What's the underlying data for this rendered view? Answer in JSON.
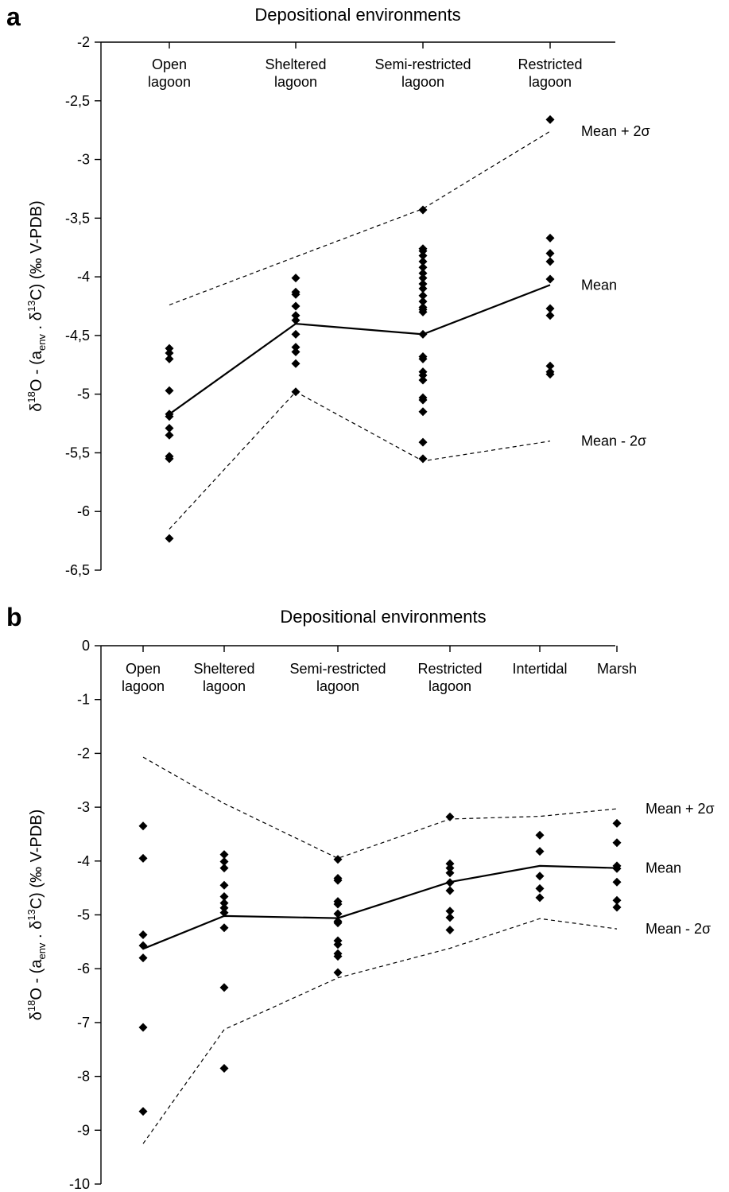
{
  "chart_data": [
    {
      "type": "scatter",
      "panel_label": "a",
      "title": "Depositional environments",
      "ylabel": {
        "pre": "δ",
        "sup1": "18",
        "mid": "O - (a",
        "sub": "env",
        "mid2": " . δ",
        "sup2": "13",
        "post": "C) (‰ V-PDB)"
      },
      "ylim": [
        -6.5,
        -2
      ],
      "yticks": [
        -2,
        -2.5,
        -3,
        -3.5,
        -4,
        -4.5,
        -5,
        -5.5,
        -6,
        -6.5
      ],
      "ytick_labels": [
        "-2",
        "-2,5",
        "-3",
        "-3,5",
        "-4",
        "-4,5",
        "-5",
        "-5,5",
        "-6",
        "-6,5"
      ],
      "categories": [
        [
          "Open",
          "lagoon"
        ],
        [
          "Sheltered",
          "lagoon"
        ],
        [
          "Semi-restricted",
          "lagoon"
        ],
        [
          "Restricted",
          "lagoon"
        ]
      ],
      "points": [
        [
          -4.61,
          -4.65,
          -4.7,
          -4.97,
          -5.17,
          -5.19,
          -5.29,
          -5.35,
          -5.53,
          -5.55,
          -6.23
        ],
        [
          -4.01,
          -4.13,
          -4.15,
          -4.25,
          -4.33,
          -4.37,
          -4.49,
          -4.6,
          -4.64,
          -4.74,
          -4.98
        ],
        [
          -3.43,
          -3.76,
          -3.78,
          -3.82,
          -3.87,
          -3.92,
          -3.97,
          -4.01,
          -4.06,
          -4.1,
          -4.16,
          -4.21,
          -4.26,
          -4.28,
          -4.3,
          -4.49,
          -4.68,
          -4.7,
          -4.81,
          -4.84,
          -4.88,
          -5.03,
          -5.05,
          -5.15,
          -5.41,
          -5.55
        ],
        [
          -2.66,
          -3.67,
          -3.8,
          -3.87,
          -4.02,
          -4.27,
          -4.33,
          -4.76,
          -4.81,
          -4.83
        ]
      ],
      "series": [
        {
          "name": "Mean",
          "values": [
            -5.17,
            -4.4,
            -4.49,
            -4.07
          ]
        },
        {
          "name": "Mean + 2σ",
          "values": [
            -4.24,
            -3.83,
            -3.42,
            -2.76
          ]
        },
        {
          "name": "Mean - 2σ",
          "values": [
            -6.15,
            -4.98,
            -5.57,
            -5.4
          ]
        }
      ],
      "legend": "right, inline labels at line ends",
      "grid": false
    },
    {
      "type": "scatter",
      "panel_label": "b",
      "title": "Depositional environments",
      "ylabel": {
        "pre": "δ",
        "sup1": "18",
        "mid": "O - (a",
        "sub": "env",
        "mid2": " . δ",
        "sup2": "13",
        "post": "C) (‰ V-PDB)"
      },
      "ylim": [
        -10,
        0
      ],
      "yticks": [
        0,
        -1,
        -2,
        -3,
        -4,
        -5,
        -6,
        -7,
        -8,
        -9,
        -10
      ],
      "ytick_labels": [
        "0",
        "-1",
        "-2",
        "-3",
        "-4",
        "-5",
        "-6",
        "-7",
        "-8",
        "-9",
        "-10"
      ],
      "categories": [
        [
          "Open",
          "lagoon"
        ],
        [
          "Sheltered",
          "lagoon"
        ],
        [
          "Semi-restricted",
          "lagoon"
        ],
        [
          "Restricted",
          "lagoon"
        ],
        [
          "Intertidal"
        ],
        [
          "Marsh"
        ]
      ],
      "points": [
        [
          -3.35,
          -3.95,
          -5.37,
          -5.57,
          -5.8,
          -7.09,
          -8.65
        ],
        [
          -3.88,
          -4.01,
          -4.13,
          -4.45,
          -4.66,
          -4.78,
          -4.87,
          -4.96,
          -5.24,
          -6.35,
          -7.85
        ],
        [
          -3.97,
          -4.32,
          -4.36,
          -4.75,
          -4.8,
          -4.98,
          -5.12,
          -5.15,
          -5.48,
          -5.55,
          -5.72,
          -5.77,
          -6.07
        ],
        [
          -3.18,
          -4.05,
          -4.13,
          -4.22,
          -4.4,
          -4.55,
          -4.93,
          -5.05,
          -5.28
        ],
        [
          -3.52,
          -3.82,
          -4.28,
          -4.51,
          -4.68
        ],
        [
          -3.3,
          -3.66,
          -4.09,
          -4.14,
          -4.39,
          -4.73,
          -4.86
        ]
      ],
      "series": [
        {
          "name": "Mean",
          "values": [
            -5.63,
            -5.02,
            -5.06,
            -4.39,
            -4.09,
            -4.13
          ]
        },
        {
          "name": "Mean + 2σ",
          "values": [
            -2.07,
            -2.93,
            -3.95,
            -3.22,
            -3.17,
            -3.03
          ]
        },
        {
          "name": "Mean - 2σ",
          "values": [
            -9.25,
            -7.13,
            -6.17,
            -5.62,
            -5.07,
            -5.26
          ]
        }
      ],
      "legend": "right, inline labels at line ends",
      "grid": false
    }
  ]
}
